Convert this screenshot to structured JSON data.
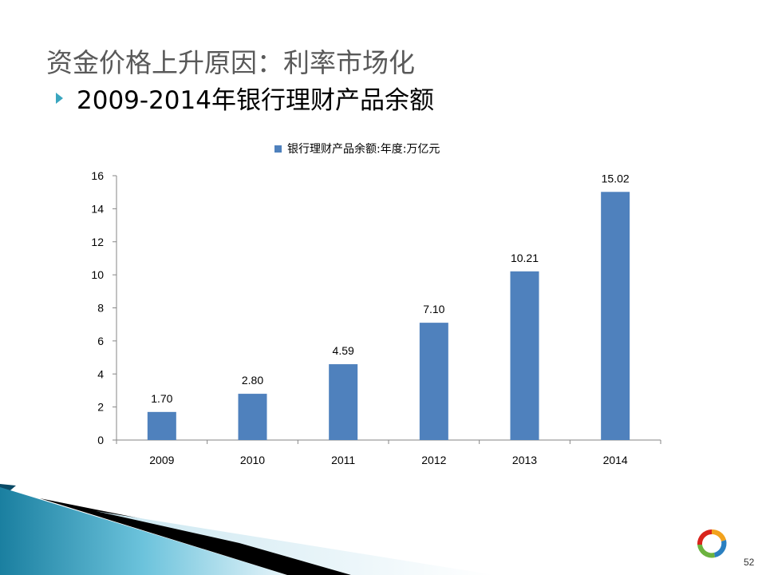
{
  "slide": {
    "title": "资金价格上升原因：利率市场化",
    "bullet": "2009-2014年银行理财产品余额",
    "page_number": "52"
  },
  "icons": {
    "bullet": "triangle-bullet-icon",
    "logo": "ring-logo-icon"
  },
  "colors": {
    "bar": "#4f81bd",
    "accent": "#3aa6bf",
    "title": "#595959"
  },
  "chart_data": {
    "type": "bar",
    "title": "",
    "xlabel": "",
    "ylabel": "",
    "categories": [
      "2009",
      "2010",
      "2011",
      "2012",
      "2013",
      "2014"
    ],
    "series": [
      {
        "name": "银行理财产品余额:年度:万亿元",
        "values": [
          1.7,
          2.8,
          4.59,
          7.1,
          10.21,
          15.02
        ],
        "labels": [
          "1.70",
          "2.80",
          "4.59",
          "7.10",
          "10.21",
          "15.02"
        ]
      }
    ],
    "ylim": [
      0,
      16
    ],
    "yticks": [
      "0",
      "2",
      "4",
      "6",
      "8",
      "10",
      "12",
      "14",
      "16"
    ],
    "grid": false,
    "legend": "top"
  }
}
